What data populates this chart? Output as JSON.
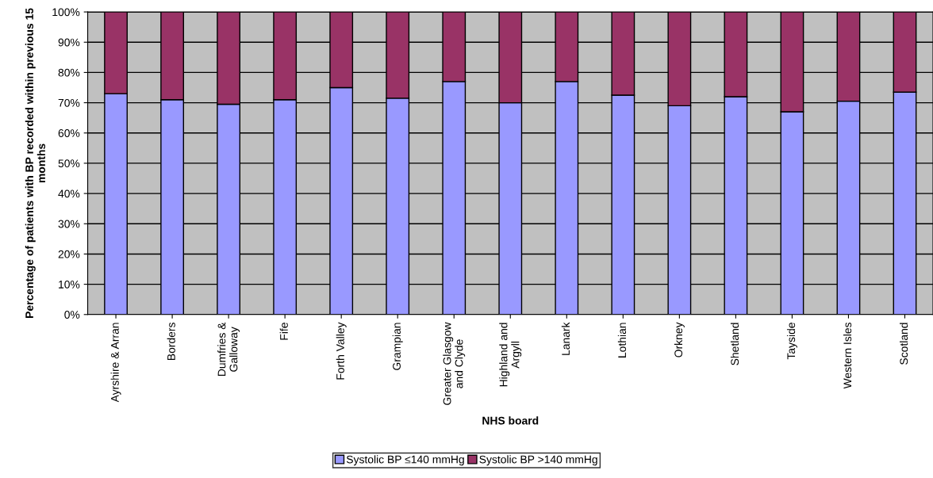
{
  "chart_data": {
    "type": "bar",
    "stacked": true,
    "xlabel": "NHS board",
    "ylabel": "Percentage of patients with BP recorded within previous 15 months",
    "categories": [
      "Ayrshire & Arran",
      "Borders",
      "Dumfries &\nGalloway",
      "Fife",
      "Forth Valley",
      "Grampian",
      "Greater Glasgow\nand Clyde",
      "Highland and\nArgyll",
      "Lanark",
      "Lothian",
      "Orkney",
      "Shetland",
      "Tayside",
      "Western Isles",
      "Scotland"
    ],
    "series": [
      {
        "name": "Systolic BP ≤140 mmHg",
        "color": "#9999ff",
        "values": [
          73,
          71,
          69.5,
          71,
          75,
          71.5,
          77,
          70,
          77,
          72.5,
          69,
          72,
          67,
          70.5,
          73.5
        ]
      },
      {
        "name": "Systolic BP >140 mmHg",
        "color": "#993366",
        "values": [
          27,
          29,
          30.5,
          29,
          25,
          28.5,
          23,
          30,
          23,
          27.5,
          31,
          28,
          33,
          29.5,
          26.5
        ]
      }
    ],
    "ylim": [
      0,
      100
    ],
    "yticks": [
      {
        "value": 0,
        "label": "0%"
      },
      {
        "value": 10,
        "label": "10%"
      },
      {
        "value": 20,
        "label": "20%"
      },
      {
        "value": 30,
        "label": "30%"
      },
      {
        "value": 40,
        "label": "40%"
      },
      {
        "value": 50,
        "label": "50%"
      },
      {
        "value": 60,
        "label": "60%"
      },
      {
        "value": 70,
        "label": "70%"
      },
      {
        "value": 80,
        "label": "80%"
      },
      {
        "value": 90,
        "label": "90%"
      },
      {
        "value": 100,
        "label": "100%"
      }
    ],
    "grid": "y",
    "legend": "bottom"
  }
}
